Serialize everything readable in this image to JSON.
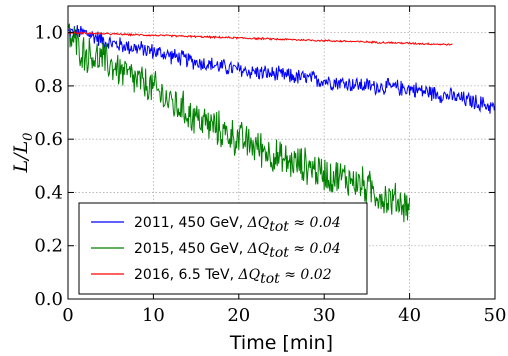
{
  "chart_data": {
    "type": "line",
    "xlabel": "Time [min]",
    "ylabel": "L/L",
    "ylabel_sub": "0",
    "xlim": [
      0,
      50
    ],
    "ylim": [
      0.0,
      1.1
    ],
    "xticks": [
      0,
      10,
      20,
      30,
      40,
      50
    ],
    "xtick_labels": [
      "0",
      "10",
      "20",
      "30",
      "40",
      "50"
    ],
    "yticks": [
      0.0,
      0.2,
      0.4,
      0.6,
      0.8,
      1.0
    ],
    "ytick_labels": [
      "0.0",
      "0.2",
      "0.4",
      "0.6",
      "0.8",
      "1.0"
    ],
    "grid": true,
    "legend_position": "lower-left",
    "series": [
      {
        "name_text": "2011, 450 GeV, ",
        "name_math": "ΔQ",
        "name_math_sub": "tot",
        "name_math_rest": " ≈ 0.04",
        "color": "#0000ff",
        "noise": 0.018,
        "x": [
          0,
          2,
          5,
          10,
          15,
          20,
          25,
          30,
          35,
          40,
          45,
          50
        ],
        "y": [
          1.0,
          1.0,
          0.96,
          0.93,
          0.89,
          0.86,
          0.84,
          0.82,
          0.8,
          0.79,
          0.76,
          0.72
        ]
      },
      {
        "name_text": "2015, 450 GeV, ",
        "name_math": "ΔQ",
        "name_math_sub": "tot",
        "name_math_rest": " ≈ 0.04",
        "color": "#008000",
        "noise": 0.04,
        "x": [
          0,
          2,
          4,
          6,
          8,
          10,
          12,
          15,
          18,
          20,
          23,
          25,
          28,
          30,
          33,
          35,
          37,
          40
        ],
        "y": [
          0.99,
          0.92,
          0.9,
          0.86,
          0.82,
          0.79,
          0.74,
          0.68,
          0.63,
          0.6,
          0.56,
          0.52,
          0.5,
          0.47,
          0.45,
          0.42,
          0.38,
          0.35
        ]
      },
      {
        "name_text": "2016, 6.5 TeV, ",
        "name_math": "ΔQ",
        "name_math_sub": "tot",
        "name_math_rest": " ≈ 0.02",
        "color": "#ff0000",
        "noise": 0.002,
        "x": [
          0,
          5,
          10,
          15,
          20,
          25,
          30,
          35,
          40,
          45
        ],
        "y": [
          1.0,
          0.995,
          0.99,
          0.985,
          0.98,
          0.975,
          0.97,
          0.965,
          0.96,
          0.955
        ]
      }
    ]
  }
}
